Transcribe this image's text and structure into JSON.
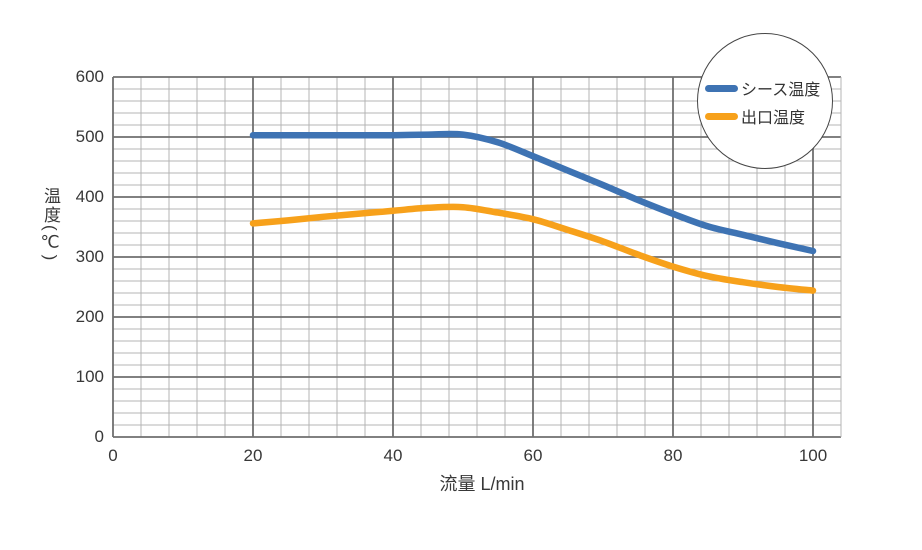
{
  "chart_data": {
    "type": "line",
    "title": "",
    "xlabel": "流量 L/min",
    "ylabel": "温度(℃)",
    "xlim": [
      0,
      104
    ],
    "ylim": [
      0,
      600
    ],
    "x_ticks": [
      0,
      20,
      40,
      60,
      80,
      100
    ],
    "y_ticks": [
      0,
      100,
      200,
      300,
      400,
      500,
      600
    ],
    "x_minor_step": 4,
    "y_minor_step": 20,
    "grid": "fine minor grid with darker major lines",
    "legend_position": "top-right, inside white circle badge",
    "x": [
      20,
      25,
      30,
      35,
      40,
      45,
      50,
      55,
      60,
      65,
      70,
      75,
      80,
      85,
      90,
      95,
      100
    ],
    "series": [
      {
        "name": "シース温度",
        "color": "#3E73B3",
        "values": [
          503,
          503,
          503,
          503,
          503,
          504,
          504,
          491,
          468,
          444,
          420,
          395,
          372,
          351,
          337,
          323,
          310
        ]
      },
      {
        "name": "出口温度",
        "color": "#F7A11B",
        "values": [
          356,
          361,
          367,
          372,
          377,
          382,
          383,
          374,
          363,
          345,
          326,
          304,
          284,
          268,
          258,
          250,
          244
        ]
      }
    ]
  },
  "colors": {
    "grid_minor": "#b4b4b4",
    "grid_major": "#6f6f6f",
    "text": "#383838",
    "legend_border": "#454545",
    "background": "#ffffff"
  }
}
